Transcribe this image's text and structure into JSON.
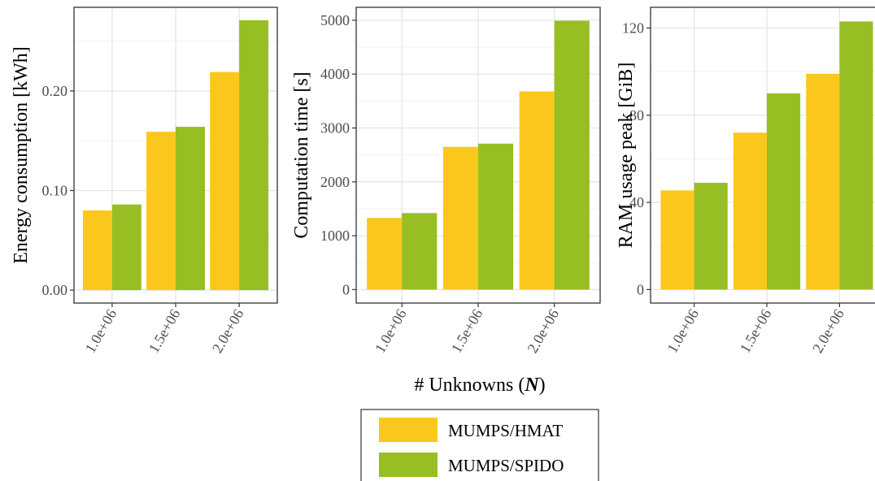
{
  "chart_data": {
    "type": "bar",
    "shared_xlabel": "# Unknowns (",
    "shared_xlabel_symbol": "N",
    "shared_xlabel_suffix": ")",
    "series": [
      {
        "name": "MUMPS/HMAT",
        "color": "#fcc71c"
      },
      {
        "name": "MUMPS/SPIDO",
        "color": "#97be22"
      }
    ],
    "legend_position": "bottom",
    "grid": true,
    "panels": [
      {
        "ylabel": "Energy consumption [kWh]",
        "categories": [
          "1.0e+06",
          "1.5e+06",
          "2.0e+06"
        ],
        "values": {
          "MUMPS/HMAT": [
            0.08,
            0.159,
            0.219
          ],
          "MUMPS/SPIDO": [
            0.086,
            0.164,
            0.271
          ]
        },
        "ylim": [
          -0.013,
          0.284
        ],
        "yticks": [
          0.0,
          0.1,
          0.2
        ],
        "ytick_labels": [
          "0.00",
          "0.10",
          "0.20"
        ]
      },
      {
        "ylabel": "Computation time [s]",
        "categories": [
          "1.0e+06",
          "1.5e+06",
          "2.0e+06"
        ],
        "values": {
          "MUMPS/HMAT": [
            1330,
            2650,
            3680
          ],
          "MUMPS/SPIDO": [
            1420,
            2710,
            4990
          ]
        },
        "ylim": [
          -250,
          5240
        ],
        "yticks": [
          0,
          1000,
          2000,
          3000,
          4000,
          5000
        ],
        "ytick_labels": [
          "0",
          "1000",
          "2000",
          "3000",
          "4000",
          "5000"
        ]
      },
      {
        "ylabel": "RAM usage peak [GiB]",
        "categories": [
          "1.0e+06",
          "1.5e+06",
          "2.0e+06"
        ],
        "values": {
          "MUMPS/HMAT": [
            45.5,
            72.0,
            99.0
          ],
          "MUMPS/SPIDO": [
            49.0,
            90.0,
            123.0
          ]
        },
        "ylim": [
          -6.2,
          129.5
        ],
        "yticks": [
          0,
          40,
          80,
          120
        ],
        "ytick_labels": [
          "0",
          "40",
          "80",
          "120"
        ]
      }
    ]
  }
}
